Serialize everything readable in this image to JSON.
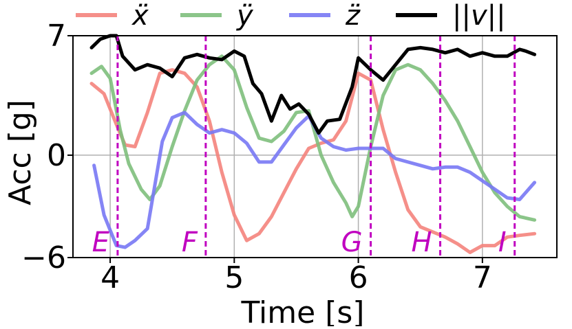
{
  "chart_data": {
    "type": "line",
    "title": "",
    "xlabel": "Time [s]",
    "ylabel": "Acc [g]",
    "xlim": [
      3.7,
      7.6
    ],
    "ylim": [
      -6,
      7
    ],
    "xticks": [
      4,
      5,
      6,
      7
    ],
    "xtick_labels": [
      "4",
      "5",
      "6",
      "7"
    ],
    "yticks": [
      -6,
      0,
      7
    ],
    "ytick_labels": [
      "−6",
      "0",
      "7"
    ],
    "grid": true,
    "legend_position": "top",
    "series": [
      {
        "name": "ẍ",
        "color": "#f4837c",
        "x": [
          3.85,
          3.95,
          4.05,
          4.12,
          4.2,
          4.3,
          4.4,
          4.5,
          4.6,
          4.7,
          4.8,
          4.9,
          5.0,
          5.1,
          5.2,
          5.3,
          5.4,
          5.5,
          5.6,
          5.7,
          5.8,
          5.9,
          6.0,
          6.1,
          6.2,
          6.3,
          6.4,
          6.5,
          6.6,
          6.7,
          6.8,
          6.9,
          7.0,
          7.1,
          7.2,
          7.3,
          7.42
        ],
        "y": [
          4.2,
          3.6,
          1.8,
          0.6,
          0.5,
          2.5,
          4.8,
          5.0,
          4.8,
          4.0,
          2.0,
          -1.0,
          -3.5,
          -5.0,
          -4.6,
          -3.6,
          -2.2,
          -0.8,
          0.4,
          0.7,
          0.9,
          2.0,
          4.8,
          4.4,
          1.5,
          -1.0,
          -3.2,
          -4.2,
          -4.5,
          -4.8,
          -5.2,
          -5.7,
          -5.3,
          -5.3,
          -4.8,
          -4.7,
          -4.6
        ]
      },
      {
        "name": "ÿ",
        "color": "#7ebf7c",
        "x": [
          3.85,
          3.93,
          4.0,
          4.08,
          4.15,
          4.25,
          4.32,
          4.4,
          4.5,
          4.6,
          4.7,
          4.8,
          4.9,
          5.0,
          5.1,
          5.2,
          5.3,
          5.4,
          5.5,
          5.6,
          5.7,
          5.8,
          5.9,
          5.95,
          6.0,
          6.1,
          6.2,
          6.3,
          6.4,
          6.5,
          6.6,
          6.7,
          6.8,
          6.9,
          7.0,
          7.1,
          7.2,
          7.3,
          7.42
        ],
        "y": [
          4.8,
          5.2,
          4.5,
          1.5,
          -0.5,
          -2.0,
          -2.6,
          -1.8,
          0.5,
          2.6,
          4.4,
          5.3,
          5.8,
          5.0,
          2.8,
          1.0,
          0.8,
          1.4,
          2.5,
          2.6,
          0.0,
          -1.6,
          -2.8,
          -3.6,
          -3.0,
          0.5,
          3.5,
          5.0,
          5.3,
          5.0,
          4.2,
          3.2,
          2.0,
          0.5,
          -1.0,
          -2.2,
          -3.0,
          -3.6,
          -3.8
        ]
      },
      {
        "name": "z̈",
        "color": "#7878f4",
        "x": [
          3.87,
          3.95,
          4.05,
          4.12,
          4.2,
          4.3,
          4.42,
          4.5,
          4.6,
          4.7,
          4.8,
          4.9,
          5.0,
          5.1,
          5.2,
          5.3,
          5.4,
          5.5,
          5.6,
          5.7,
          5.8,
          5.9,
          6.0,
          6.1,
          6.2,
          6.3,
          6.4,
          6.5,
          6.6,
          6.7,
          6.8,
          6.9,
          7.0,
          7.1,
          7.2,
          7.3,
          7.42
        ],
        "y": [
          -0.6,
          -3.5,
          -5.3,
          -5.4,
          -5.0,
          -4.3,
          0.8,
          2.2,
          2.5,
          1.8,
          1.3,
          1.5,
          1.3,
          0.7,
          -0.4,
          -0.4,
          0.6,
          1.6,
          2.3,
          1.0,
          0.5,
          0.3,
          0.4,
          0.4,
          0.4,
          -0.2,
          -0.4,
          -0.6,
          -0.8,
          -0.7,
          -0.7,
          -1.0,
          -1.5,
          -2.0,
          -2.5,
          -2.6,
          -1.6
        ]
      },
      {
        "name": "||v||",
        "color": "#000000",
        "x": [
          3.85,
          3.92,
          4.0,
          4.05,
          4.1,
          4.2,
          4.3,
          4.4,
          4.5,
          4.6,
          4.7,
          4.8,
          4.9,
          5.0,
          5.08,
          5.15,
          5.22,
          5.3,
          5.38,
          5.45,
          5.52,
          5.6,
          5.68,
          5.75,
          5.85,
          5.95,
          6.0,
          6.1,
          6.2,
          6.3,
          6.4,
          6.5,
          6.6,
          6.7,
          6.8,
          6.9,
          7.0,
          7.1,
          7.2,
          7.3,
          7.35,
          7.42
        ],
        "y": [
          6.3,
          6.8,
          7.0,
          7.0,
          5.8,
          5.0,
          5.3,
          5.1,
          4.6,
          5.7,
          5.9,
          5.7,
          5.6,
          6.1,
          5.8,
          4.2,
          3.6,
          2.0,
          3.5,
          2.7,
          3.0,
          2.4,
          1.3,
          2.0,
          2.1,
          4.0,
          5.7,
          5.0,
          4.4,
          5.3,
          6.2,
          6.3,
          6.2,
          6.0,
          6.2,
          5.8,
          6.0,
          5.8,
          5.8,
          6.2,
          6.1,
          5.9
        ]
      }
    ],
    "events": [
      {
        "label": "E",
        "x": 4.06
      },
      {
        "label": "F",
        "x": 4.77
      },
      {
        "label": "G",
        "x": 6.1
      },
      {
        "label": "H",
        "x": 6.66
      },
      {
        "label": "I",
        "x": 7.26
      }
    ],
    "event_line_color": "#c000c0"
  }
}
